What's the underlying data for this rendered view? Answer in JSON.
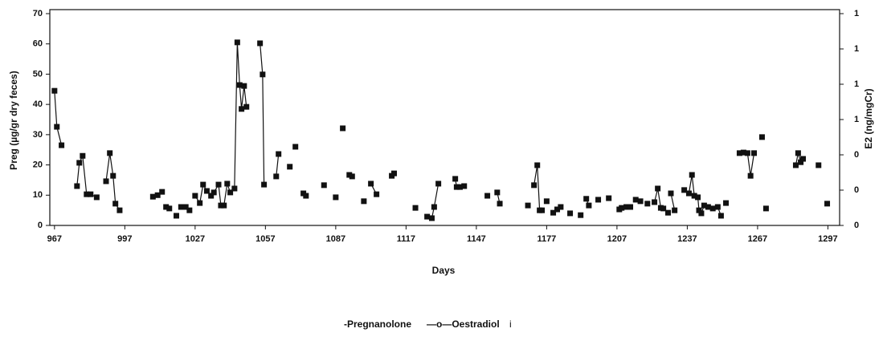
{
  "chart_data": {
    "type": "line",
    "xlabel": "Days",
    "ylabel": "Preg (µg/gr dry feces)",
    "y2label": "E2 (ng/mgCr)",
    "legend": [
      "-Pregnanolone",
      "—o—Oestradiol",
      "i"
    ],
    "xlim": [
      965,
      1302
    ],
    "xticks": [
      967,
      997,
      1027,
      1057,
      1087,
      1117,
      1147,
      1177,
      1207,
      1237,
      1267,
      1297
    ],
    "ylim": [
      0,
      70
    ],
    "yticks": [
      0,
      10,
      20,
      30,
      40,
      50,
      60,
      70
    ],
    "y2lim": [
      0,
      1.2
    ],
    "y2ticks": [
      {
        "value": 0,
        "label": "0"
      },
      {
        "value": 0.2,
        "label": "0"
      },
      {
        "value": 0.4,
        "label": "0"
      },
      {
        "value": 0.6,
        "label": "1"
      },
      {
        "value": 0.8,
        "label": "1"
      },
      {
        "value": 1.0,
        "label": "1"
      },
      {
        "value": 1.2,
        "label": "1"
      }
    ],
    "x": [
      967,
      968,
      970,
      null,
      976.6,
      977.6,
      979,
      980.7,
      982.4,
      985,
      null,
      989,
      990.6,
      992,
      993,
      994.8,
      null,
      1009,
      1011,
      1012.9,
      null,
      1014.6,
      null,
      1016,
      null,
      1019,
      null,
      1021,
      1023,
      1024.6,
      null,
      1027,
      1029,
      1030.4,
      1032,
      1033.8,
      1035,
      1037,
      1038,
      1039.3,
      1040.7,
      1042,
      1043.8,
      1045,
      1046,
      1046.8,
      1047.9,
      1048.9,
      null,
      1054.7,
      1055.8,
      1056.4,
      null,
      1061.6,
      1062.6,
      null,
      1067.4,
      null,
      1069.8,
      null,
      1073.2,
      1074.3,
      null,
      1082,
      null,
      1087,
      null,
      1090,
      null,
      1092.8,
      1094,
      null,
      1099,
      null,
      1102,
      1104.4,
      null,
      1110.9,
      1111.9,
      null,
      1121,
      null,
      1126,
      1128,
      1129,
      1130.8,
      null,
      1138,
      1138.6,
      1140,
      1141.8,
      null,
      1151.7,
      null,
      1155.9,
      1157,
      null,
      1169,
      null,
      1171.6,
      1173,
      1174,
      1175,
      null,
      1177,
      null,
      1179.8,
      1181.5,
      1183,
      null,
      1187,
      null,
      1191.5,
      null,
      1193.9,
      1195,
      null,
      1199,
      null,
      1203.5,
      null,
      1208,
      1209,
      1211,
      1212.7,
      null,
      1215,
      1217,
      null,
      1220,
      null,
      1223,
      1224.4,
      1225.7,
      1226.8,
      1228.8,
      null,
      1230,
      1231.6,
      null,
      1235.7,
      1237.7,
      1239,
      1240,
      1241.5,
      1242,
      1243,
      1244.2,
      1245.9,
      1247.9,
      1250,
      1251.4,
      null,
      1253.5,
      null,
      1259.3,
      1261,
      1262.7,
      1264,
      1265.5,
      null,
      1268.9,
      null,
      1270.6,
      null,
      1283.3,
      1284.3,
      1285.4,
      1286.4,
      null,
      1293,
      null,
      1296.7
    ],
    "series": [
      {
        "color": "#111111",
        "values": [
          44.5,
          32.6,
          26.5,
          null,
          13,
          20.7,
          23,
          10.3,
          10.3,
          9.3,
          null,
          14.6,
          23.9,
          16.4,
          7.2,
          5,
          null,
          9.5,
          10,
          11.1,
          null,
          6.1,
          null,
          5.6,
          null,
          3.2,
          null,
          6.1,
          6.1,
          5,
          null,
          9.8,
          7.4,
          13.5,
          11.4,
          9.8,
          10.9,
          13.5,
          6.6,
          6.6,
          13.8,
          10.9,
          12.2,
          60.5,
          46.4,
          38.5,
          46.1,
          39.2,
          null,
          60.2,
          49.9,
          13.5,
          null,
          16.2,
          23.6,
          null,
          19.4,
          null,
          26,
          null,
          10.6,
          9.8,
          null,
          13.3,
          null,
          9.3,
          null,
          32.1,
          null,
          16.7,
          16.2,
          null,
          8,
          null,
          13.8,
          10.3,
          null,
          16.4,
          17.2,
          null,
          5.8,
          null,
          2.9,
          2.4,
          6.1,
          13.8,
          null,
          15.4,
          12.7,
          12.7,
          13,
          null,
          9.8,
          null,
          10.9,
          7.2,
          null,
          6.6,
          null,
          13.3,
          19.9,
          5,
          5,
          null,
          8,
          null,
          4.2,
          5.3,
          6.1,
          null,
          4,
          null,
          3.4,
          null,
          8.8,
          6.6,
          null,
          8.5,
          null,
          9,
          null,
          5.3,
          5.8,
          6.1,
          6.1,
          null,
          8.5,
          8,
          null,
          7.2,
          null,
          7.7,
          12.2,
          5.8,
          5.6,
          4.2,
          null,
          10.6,
          5,
          null,
          11.7,
          10.6,
          16.7,
          9.8,
          9.3,
          5,
          4,
          6.6,
          6.1,
          5.6,
          6.1,
          3.2,
          null,
          7.4,
          null,
          23.9,
          24.1,
          23.9,
          16.4,
          23.9,
          null,
          29.2,
          null,
          5.6,
          null,
          19.9,
          23.9,
          20.9,
          22,
          null,
          19.9,
          null,
          7.2
        ]
      }
    ]
  }
}
